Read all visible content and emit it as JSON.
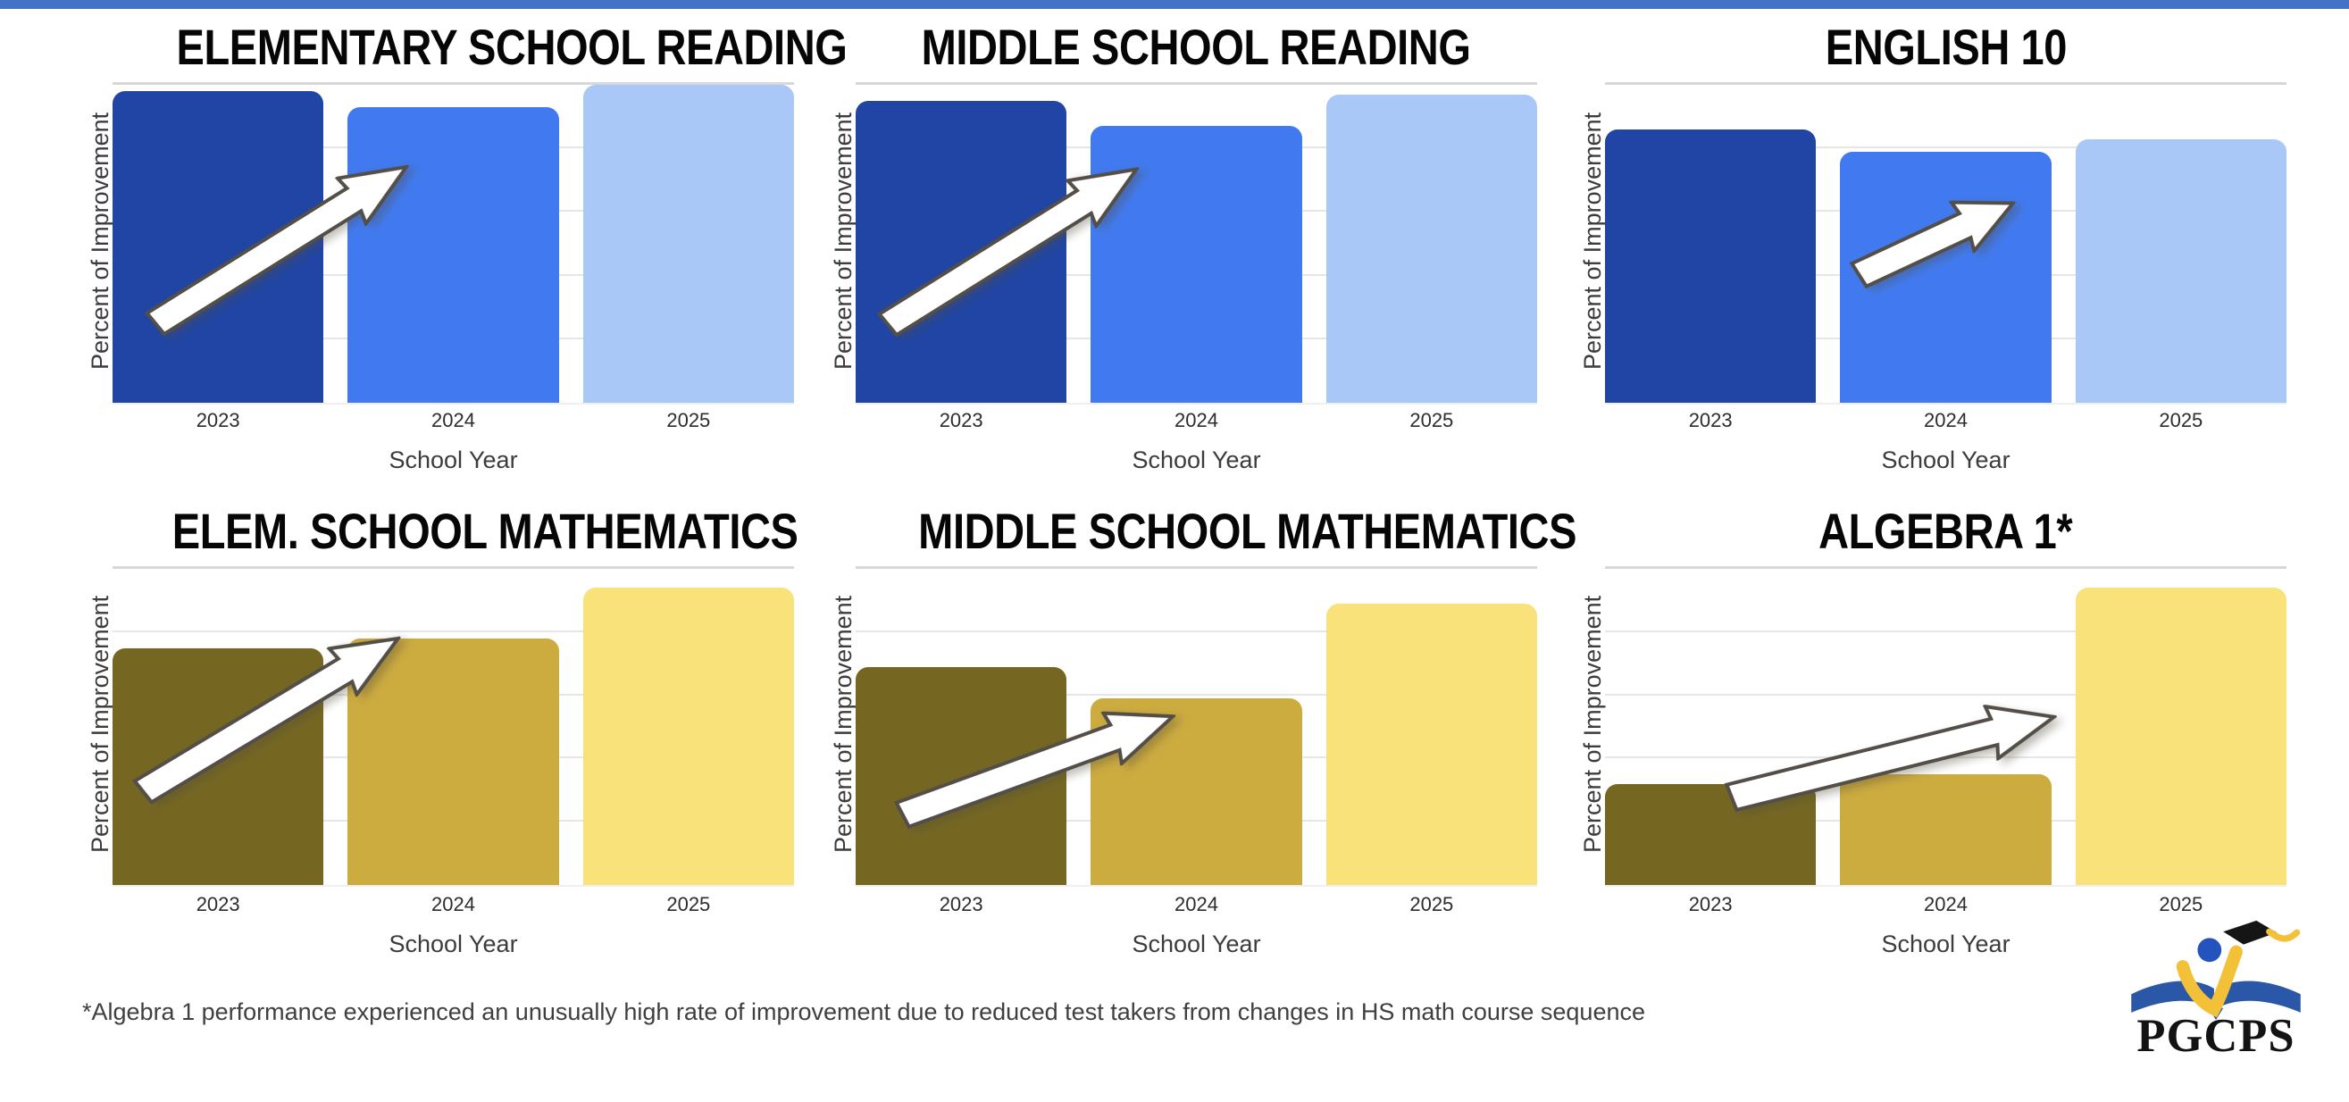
{
  "page": {
    "background_color": "#FFFFFF",
    "top_bar_color": "#4472C4",
    "footnote": "*Algebra 1 performance experienced an unusually high rate of improvement due to reduced test takers from changes in HS math course sequence"
  },
  "logo": {
    "acronym": "PGCPS",
    "book_blue": "#2B57A8",
    "accent_yellow": "#F2C138",
    "head_blue": "#2553BE",
    "cap_black": "#151515",
    "text_black": "#131313"
  },
  "chart_data": [
    {
      "type": "bar",
      "title": "ELEMENTARY SCHOOL READING",
      "xlabel": "School Year",
      "ylabel": "Percent of Improvement",
      "categories": [
        "2023",
        "2024",
        "2025"
      ],
      "values": [
        98,
        93,
        100
      ],
      "ylim": [
        0,
        100
      ],
      "grid": true,
      "legend": "none",
      "bar_colors": [
        "#2045A4",
        "#417AF0",
        "#A9C8F8"
      ],
      "annotation": "white upward trend arrow"
    },
    {
      "type": "bar",
      "title": "MIDDLE SCHOOL READING",
      "xlabel": "School Year",
      "ylabel": "Percent of Improvement",
      "categories": [
        "2023",
        "2024",
        "2025"
      ],
      "values": [
        95,
        87,
        97
      ],
      "ylim": [
        0,
        100
      ],
      "grid": true,
      "legend": "none",
      "bar_colors": [
        "#2045A4",
        "#417AF0",
        "#A9C8F8"
      ],
      "annotation": "white upward trend arrow"
    },
    {
      "type": "bar",
      "title": "ENGLISH 10",
      "xlabel": "School Year",
      "ylabel": "Percent of Improvement",
      "categories": [
        "2023",
        "2024",
        "2025"
      ],
      "values": [
        86,
        79,
        83
      ],
      "ylim": [
        0,
        100
      ],
      "grid": true,
      "legend": "none",
      "bar_colors": [
        "#2045A4",
        "#417AF0",
        "#A9C8F8"
      ],
      "annotation": "white upward trend arrow"
    },
    {
      "type": "bar",
      "title": "ELEM. SCHOOL MATHEMATICS",
      "xlabel": "School Year",
      "ylabel": "Percent of Improvement",
      "categories": [
        "2023",
        "2024",
        "2025"
      ],
      "values": [
        75,
        78,
        94
      ],
      "ylim": [
        0,
        100
      ],
      "grid": true,
      "legend": "none",
      "bar_colors": [
        "#756722",
        "#CCAB3F",
        "#F8E279"
      ],
      "annotation": "white upward trend arrow"
    },
    {
      "type": "bar",
      "title": "MIDDLE SCHOOL MATHEMATICS",
      "xlabel": "School Year",
      "ylabel": "Percent of Improvement",
      "categories": [
        "2023",
        "2024",
        "2025"
      ],
      "values": [
        69,
        59,
        89
      ],
      "ylim": [
        0,
        100
      ],
      "grid": true,
      "legend": "none",
      "bar_colors": [
        "#756722",
        "#CCAB3F",
        "#F8E279"
      ],
      "annotation": "white upward trend arrow"
    },
    {
      "type": "bar",
      "title": "ALGEBRA 1*",
      "xlabel": "School Year",
      "ylabel": "Percent of Improvement",
      "categories": [
        "2023",
        "2024",
        "2025"
      ],
      "values": [
        32,
        35,
        94
      ],
      "ylim": [
        0,
        100
      ],
      "grid": true,
      "legend": "none",
      "bar_colors": [
        "#756722",
        "#CCAB3F",
        "#F8E279"
      ],
      "annotation": "white upward trend arrow"
    }
  ]
}
